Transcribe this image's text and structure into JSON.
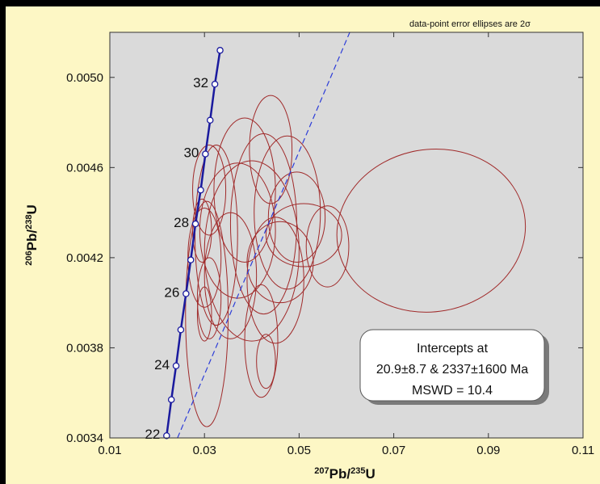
{
  "chart_data": {
    "type": "scatter",
    "subtype": "concordia error ellipses",
    "note": "data-point error ellipses are 2σ",
    "x_axis": {
      "base": "Pb",
      "mass": "207",
      "denominator": "/",
      "den_mass": "235",
      "den_base": "U",
      "range": [
        0.01,
        0.11
      ],
      "ticks": [
        0.01,
        0.03,
        0.05,
        0.07,
        0.09,
        0.11
      ],
      "tick_labels": [
        "0.01",
        "0.03",
        "0.05",
        "0.07",
        "0.09",
        "0.11"
      ]
    },
    "y_axis": {
      "base": "Pb",
      "mass": "206",
      "denominator": "/",
      "den_mass": "238",
      "den_base": "U",
      "range": [
        0.0034,
        0.0052
      ],
      "ticks": [
        0.0034,
        0.0038,
        0.0042,
        0.0046,
        0.005
      ],
      "tick_labels": [
        "0.0034",
        "0.0038",
        "0.0042",
        "0.0046",
        "0.0050"
      ]
    },
    "concordia": {
      "color": "#1a1a9e",
      "points": [
        {
          "x": 0.022,
          "y": 0.00341
        },
        {
          "x": 0.023,
          "y": 0.00357
        },
        {
          "x": 0.024,
          "y": 0.00372
        },
        {
          "x": 0.025,
          "y": 0.00388
        },
        {
          "x": 0.0261,
          "y": 0.00404
        },
        {
          "x": 0.0271,
          "y": 0.00419
        },
        {
          "x": 0.0281,
          "y": 0.00435
        },
        {
          "x": 0.0292,
          "y": 0.0045
        },
        {
          "x": 0.0302,
          "y": 0.00466
        },
        {
          "x": 0.0312,
          "y": 0.00481
        },
        {
          "x": 0.0322,
          "y": 0.00497
        },
        {
          "x": 0.0333,
          "y": 0.00512
        }
      ],
      "age_labels": [
        {
          "text": "22",
          "x": 0.022,
          "y": 0.00341
        },
        {
          "text": "24",
          "x": 0.024,
          "y": 0.00372
        },
        {
          "text": "26",
          "x": 0.0261,
          "y": 0.00404
        },
        {
          "text": "28",
          "x": 0.0281,
          "y": 0.00435
        },
        {
          "text": "30",
          "x": 0.0302,
          "y": 0.00466
        },
        {
          "text": "32",
          "x": 0.0322,
          "y": 0.00497
        }
      ]
    },
    "discordia": {
      "color": "#2c3cd8",
      "from": {
        "x": 0.0243,
        "y": 0.0034
      },
      "to": {
        "x": 0.0607,
        "y": 0.0052
      }
    },
    "ellipses": [
      {
        "cx": 0.0779,
        "cy": 0.00432,
        "rx": 0.02,
        "ry": 0.00036,
        "rot": -10
      },
      {
        "cx": 0.0425,
        "cy": 0.00435,
        "rx": 0.007,
        "ry": 0.0004,
        "rot": 0
      },
      {
        "cx": 0.04,
        "cy": 0.00423,
        "rx": 0.01,
        "ry": 0.0004,
        "rot": 0
      },
      {
        "cx": 0.0475,
        "cy": 0.0044,
        "rx": 0.007,
        "ry": 0.00034,
        "rot": 0
      },
      {
        "cx": 0.044,
        "cy": 0.00468,
        "rx": 0.0045,
        "ry": 0.00024,
        "rot": 0
      },
      {
        "cx": 0.0385,
        "cy": 0.0045,
        "rx": 0.0065,
        "ry": 0.00032,
        "rot": 0
      },
      {
        "cx": 0.0495,
        "cy": 0.00438,
        "rx": 0.006,
        "ry": 0.0002,
        "rot": 0
      },
      {
        "cx": 0.046,
        "cy": 0.00418,
        "rx": 0.007,
        "ry": 0.00018,
        "rot": 0
      },
      {
        "cx": 0.051,
        "cy": 0.0043,
        "rx": 0.008,
        "ry": 0.00014,
        "rot": 0
      },
      {
        "cx": 0.0355,
        "cy": 0.00412,
        "rx": 0.0055,
        "ry": 0.00028,
        "rot": 0
      },
      {
        "cx": 0.037,
        "cy": 0.00432,
        "rx": 0.008,
        "ry": 0.0003,
        "rot": 0
      },
      {
        "cx": 0.045,
        "cy": 0.0041,
        "rx": 0.006,
        "ry": 0.00028,
        "rot": 0
      },
      {
        "cx": 0.0325,
        "cy": 0.0043,
        "rx": 0.0045,
        "ry": 0.0004,
        "rot": 0
      },
      {
        "cx": 0.03,
        "cy": 0.0042,
        "rx": 0.0035,
        "ry": 0.00022,
        "rot": 0
      },
      {
        "cx": 0.03,
        "cy": 0.00395,
        "rx": 0.0015,
        "ry": 0.00012,
        "rot": 0
      },
      {
        "cx": 0.031,
        "cy": 0.00402,
        "rx": 0.0025,
        "ry": 0.00018,
        "rot": 0
      },
      {
        "cx": 0.0295,
        "cy": 0.00432,
        "rx": 0.002,
        "ry": 0.00014,
        "rot": 0
      },
      {
        "cx": 0.0305,
        "cy": 0.00395,
        "rx": 0.0045,
        "ry": 0.0005,
        "rot": 0
      },
      {
        "cx": 0.031,
        "cy": 0.0045,
        "rx": 0.0035,
        "ry": 0.0002,
        "rot": 0
      },
      {
        "cx": 0.042,
        "cy": 0.00383,
        "rx": 0.0035,
        "ry": 0.00025,
        "rot": 0
      },
      {
        "cx": 0.043,
        "cy": 0.00374,
        "rx": 0.002,
        "ry": 0.00012,
        "rot": 0
      },
      {
        "cx": 0.056,
        "cy": 0.00425,
        "rx": 0.0045,
        "ry": 0.00018,
        "rot": 0
      }
    ],
    "ellipse_color": "#a02a2a",
    "annotation": {
      "lines": [
        "Intercepts at",
        "20.9±8.7 & 2337±1600 Ma",
        "MSWD = 10.4"
      ]
    },
    "grid": false,
    "plot_background": "#dadada",
    "page_background": "#fdf7c5"
  }
}
